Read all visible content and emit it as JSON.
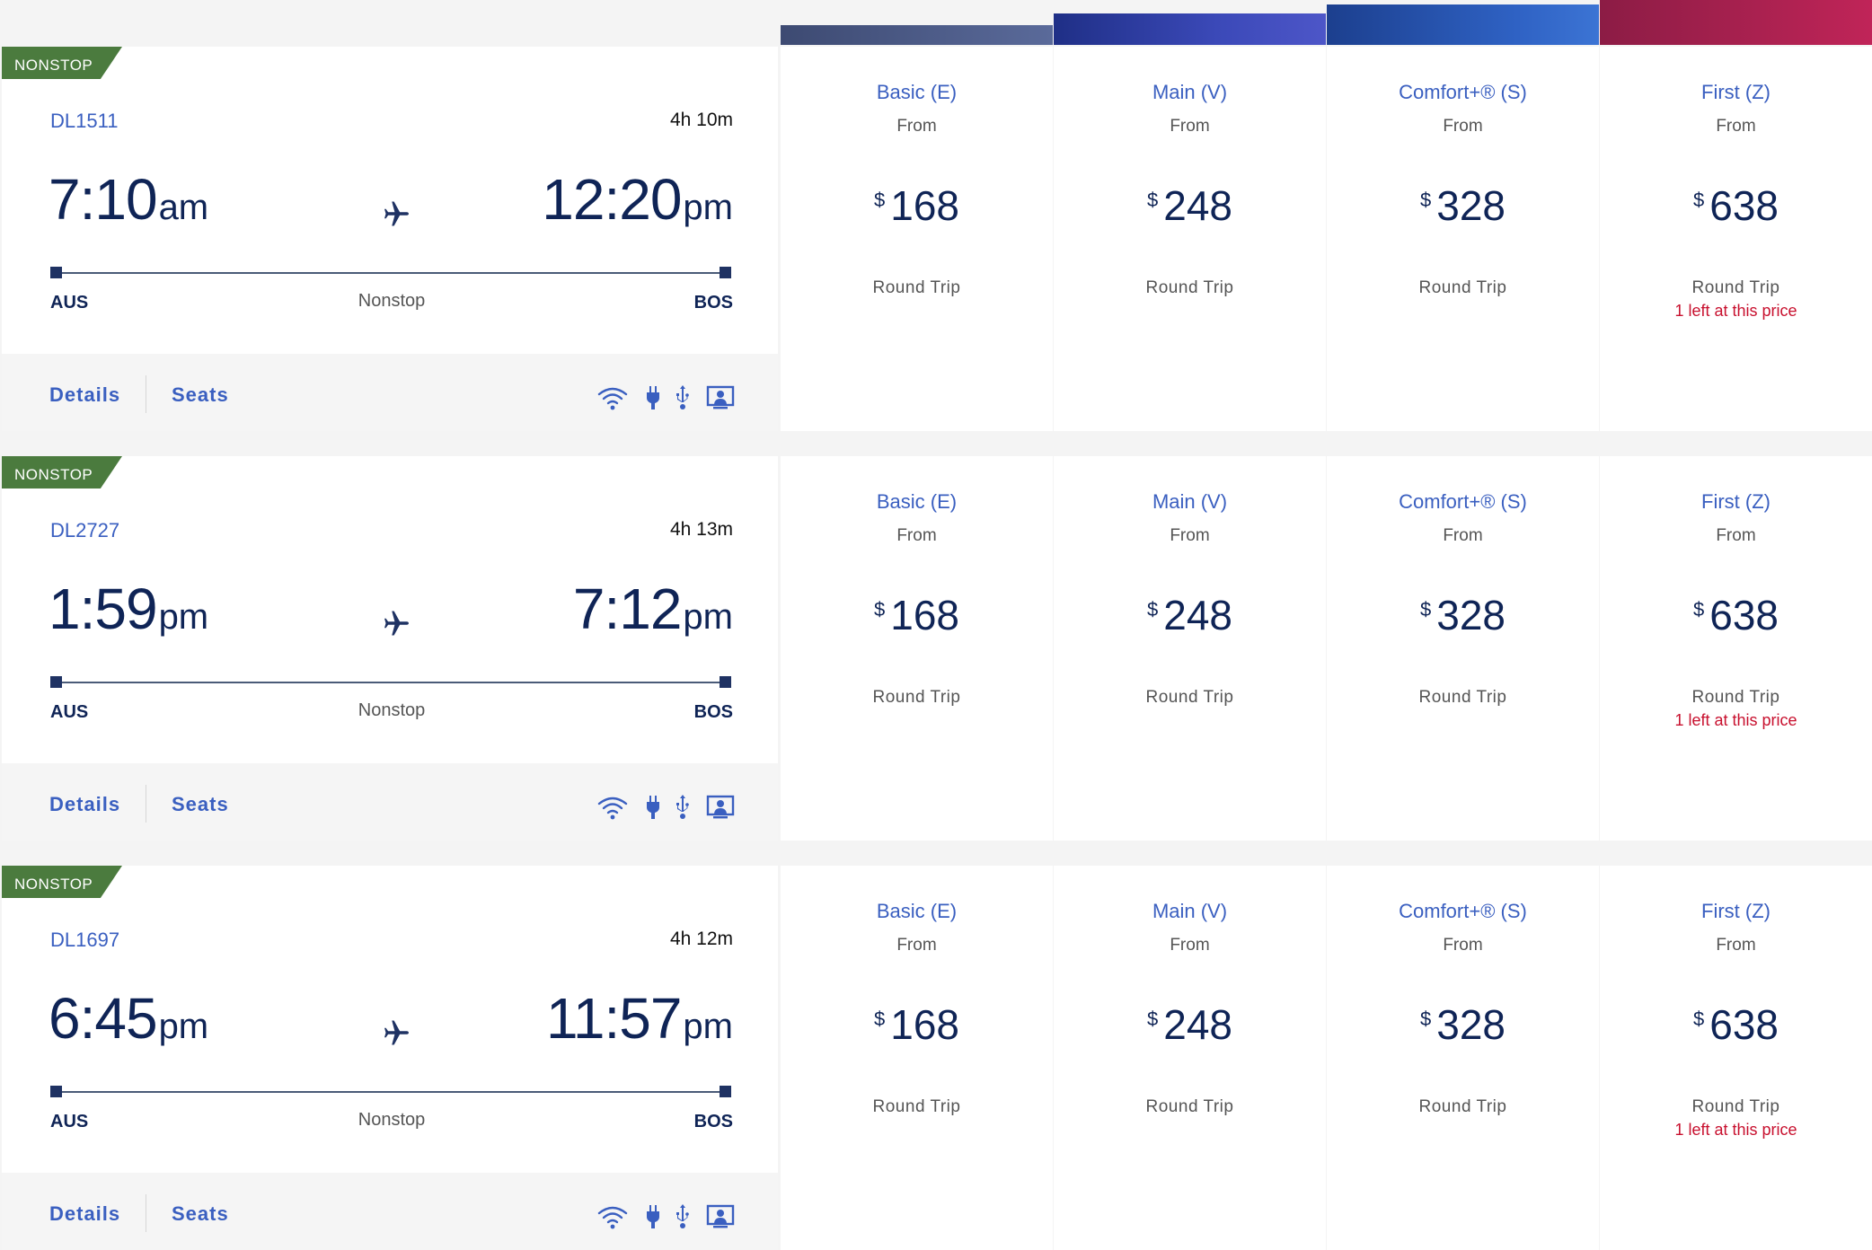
{
  "colors": {
    "accent": "#3a5fc0",
    "navy": "#0f2456",
    "nonstop_badge": "#4b7b3e",
    "alert": "#c8102e"
  },
  "amenity_icons": [
    "wifi-icon",
    "power-outlet-icon",
    "usb-icon",
    "seatback-entertainment-icon"
  ],
  "flights": [
    {
      "badge": "NONSTOP",
      "flight_number": "DL1511",
      "duration": "4h 10m",
      "dep_time": "7:10",
      "dep_ampm": "am",
      "arr_time": "12:20",
      "arr_ampm": "pm",
      "origin": "AUS",
      "destination": "BOS",
      "stops": "Nonstop",
      "details_label": "Details",
      "seats_label": "Seats",
      "fares": [
        {
          "cabin": "Basic (E)",
          "from": "From",
          "currency": "$",
          "price": "168",
          "trip": "Round Trip",
          "note": ""
        },
        {
          "cabin": "Main (V)",
          "from": "From",
          "currency": "$",
          "price": "248",
          "trip": "Round Trip",
          "note": ""
        },
        {
          "cabin": "Comfort+® (S)",
          "from": "From",
          "currency": "$",
          "price": "328",
          "trip": "Round Trip",
          "note": ""
        },
        {
          "cabin": "First (Z)",
          "from": "From",
          "currency": "$",
          "price": "638",
          "trip": "Round Trip",
          "note": "1 left at this price"
        }
      ]
    },
    {
      "badge": "NONSTOP",
      "flight_number": "DL2727",
      "duration": "4h 13m",
      "dep_time": "1:59",
      "dep_ampm": "pm",
      "arr_time": "7:12",
      "arr_ampm": "pm",
      "origin": "AUS",
      "destination": "BOS",
      "stops": "Nonstop",
      "details_label": "Details",
      "seats_label": "Seats",
      "fares": [
        {
          "cabin": "Basic (E)",
          "from": "From",
          "currency": "$",
          "price": "168",
          "trip": "Round Trip",
          "note": ""
        },
        {
          "cabin": "Main (V)",
          "from": "From",
          "currency": "$",
          "price": "248",
          "trip": "Round Trip",
          "note": ""
        },
        {
          "cabin": "Comfort+® (S)",
          "from": "From",
          "currency": "$",
          "price": "328",
          "trip": "Round Trip",
          "note": ""
        },
        {
          "cabin": "First (Z)",
          "from": "From",
          "currency": "$",
          "price": "638",
          "trip": "Round Trip",
          "note": "1 left at this price"
        }
      ]
    },
    {
      "badge": "NONSTOP",
      "flight_number": "DL1697",
      "duration": "4h 12m",
      "dep_time": "6:45",
      "dep_ampm": "pm",
      "arr_time": "11:57",
      "arr_ampm": "pm",
      "origin": "AUS",
      "destination": "BOS",
      "stops": "Nonstop",
      "details_label": "Details",
      "seats_label": "Seats",
      "fares": [
        {
          "cabin": "Basic (E)",
          "from": "From",
          "currency": "$",
          "price": "168",
          "trip": "Round Trip",
          "note": ""
        },
        {
          "cabin": "Main (V)",
          "from": "From",
          "currency": "$",
          "price": "248",
          "trip": "Round Trip",
          "note": ""
        },
        {
          "cabin": "Comfort+® (S)",
          "from": "From",
          "currency": "$",
          "price": "328",
          "trip": "Round Trip",
          "note": ""
        },
        {
          "cabin": "First (Z)",
          "from": "From",
          "currency": "$",
          "price": "638",
          "trip": "Round Trip",
          "note": "1 left at this price"
        }
      ]
    }
  ]
}
